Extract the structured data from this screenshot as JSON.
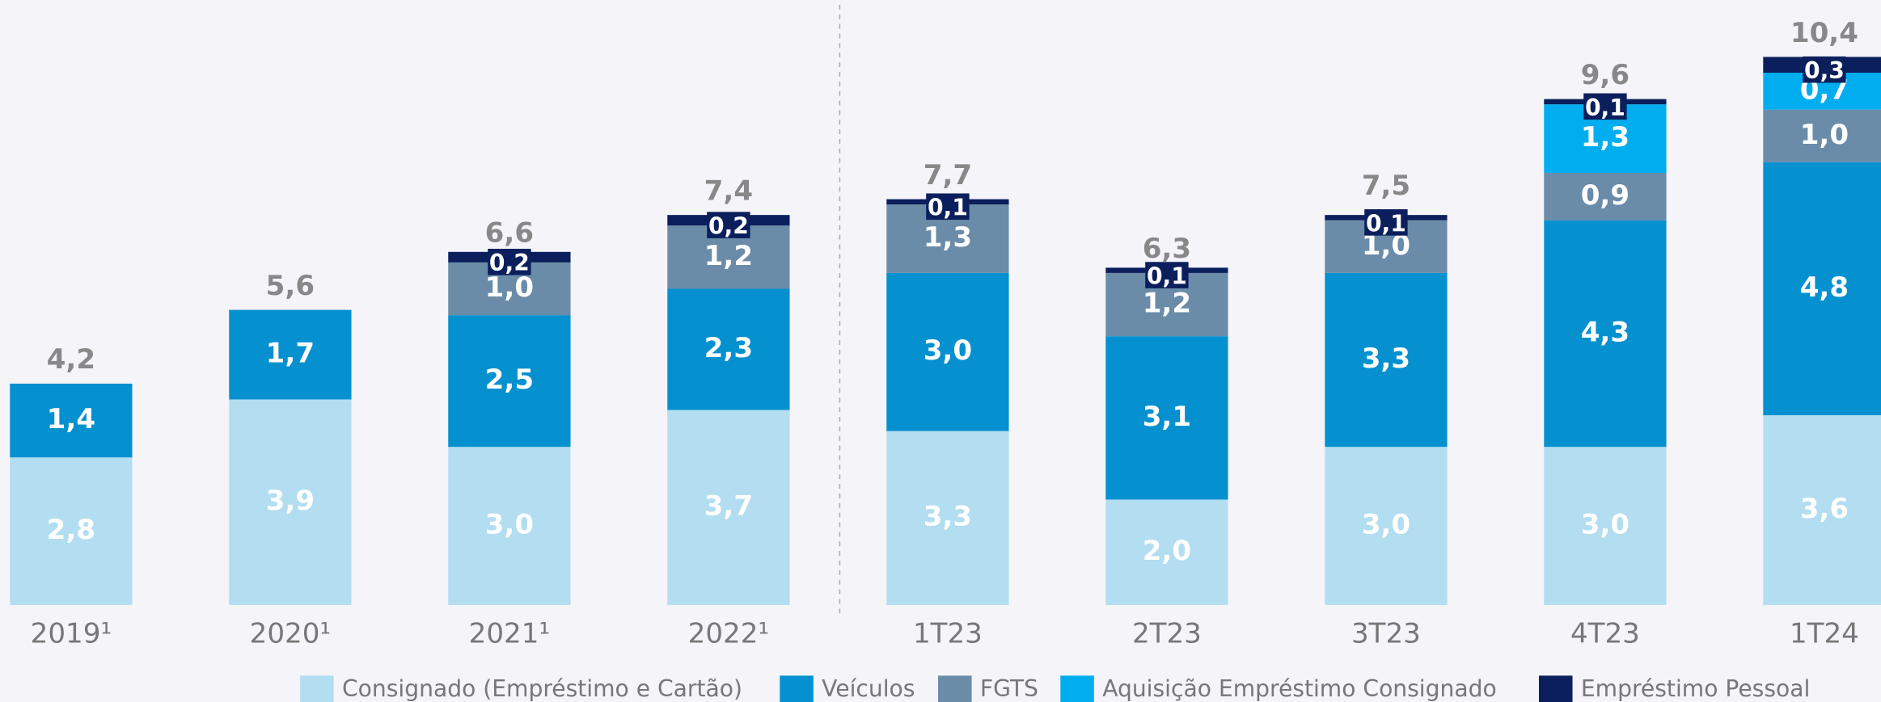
{
  "chart_data": {
    "type": "stacked_bar",
    "categories": [
      "2019¹",
      "2020¹",
      "2021¹",
      "2022¹",
      "1T23",
      "2T23",
      "3T23",
      "4T23",
      "1T24"
    ],
    "series": [
      {
        "name": "Consignado (Empréstimo e Cartão)",
        "color": "#b3ddf0",
        "values": [
          2.8,
          3.9,
          3.0,
          3.7,
          3.3,
          2.0,
          3.0,
          3.0,
          3.6
        ],
        "value_labels": [
          "2,8",
          "3,9",
          "3,0",
          "3,7",
          "3,3",
          "2,0",
          "3,0",
          "3,0",
          "3,6"
        ]
      },
      {
        "name": "Veículos",
        "color": "#0591cf",
        "values": [
          1.4,
          1.7,
          2.5,
          2.3,
          3.0,
          3.1,
          3.3,
          4.3,
          4.8
        ],
        "value_labels": [
          "1,4",
          "1,7",
          "2,5",
          "2,3",
          "3,0",
          "3,1",
          "3,3",
          "4,3",
          "4,8"
        ]
      },
      {
        "name": "FGTS",
        "color": "#6a8ca8",
        "values": [
          null,
          null,
          1.0,
          1.2,
          1.3,
          1.2,
          1.0,
          0.9,
          1.0
        ],
        "value_labels": [
          null,
          null,
          "1,0",
          "1,2",
          "1,3",
          "1,2",
          "1,0",
          "0,9",
          "1,0"
        ]
      },
      {
        "name": "Aquisição Empréstimo Consignado",
        "color": "#00aeef",
        "values": [
          null,
          null,
          null,
          null,
          null,
          null,
          null,
          1.3,
          0.7
        ],
        "value_labels": [
          null,
          null,
          null,
          null,
          null,
          null,
          null,
          "1,3",
          "0,7"
        ]
      },
      {
        "name": "Empréstimo Pessoal",
        "color": "#0b1f5c",
        "values": [
          null,
          null,
          0.2,
          0.2,
          0.1,
          0.1,
          0.1,
          0.1,
          0.3
        ],
        "value_labels": [
          null,
          null,
          "0,2",
          "0,2",
          "0,1",
          "0,1",
          "0,1",
          "0,1",
          "0,3"
        ]
      }
    ],
    "totals": [
      4.2,
      5.6,
      6.6,
      7.4,
      7.7,
      6.3,
      7.5,
      9.6,
      10.4
    ],
    "totals_labels": [
      "4,2",
      "5,6",
      "6,6",
      "7,4",
      "7,7",
      "6,3",
      "7,5",
      "9,6",
      "10,4"
    ],
    "ylim": [
      0,
      11.48
    ]
  }
}
